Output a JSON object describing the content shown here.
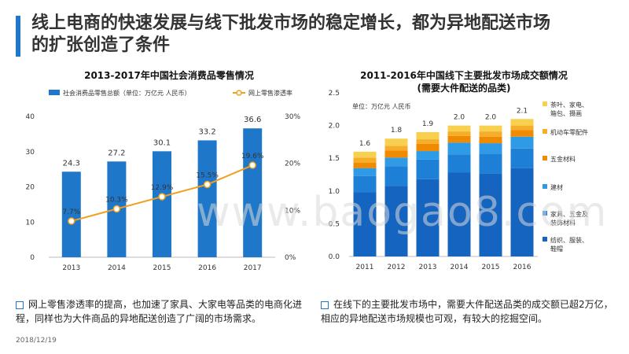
{
  "slide": {
    "title": "线上电商的快速发展与线下批发市场的稳定增长，都为异地配送市场的扩张创造了条件",
    "date": "2018/12/19",
    "watermark": "www.baogao8.com",
    "note_left": "网上零售渗透率的提高，也加速了家具、大家电等品类的电商化进程，同样也为大件商品的异地配送创造了广阔的市场需求。",
    "note_right": "在线下的主要批发市场中，需要大件配送品类的成交额已超2万亿，相应的异地配送市场规模也可观，有较大的挖掘空间。"
  },
  "chart_data": [
    {
      "type": "bar",
      "title": "2013-2017年中国社会消费品零售情况",
      "categories": [
        "2013",
        "2014",
        "2015",
        "2016",
        "2017"
      ],
      "series": [
        {
          "name": "社会消费品零售总额（单位：万亿元 人民币）",
          "type": "bar",
          "axis": "left",
          "values": [
            24.3,
            27.2,
            30.1,
            33.2,
            36.6
          ],
          "color": "#1f77c9"
        },
        {
          "name": "网上零售渗透率",
          "type": "line",
          "axis": "right",
          "values": [
            7.7,
            10.3,
            12.9,
            15.5,
            19.6
          ],
          "labels": [
            "7.7%",
            "10.3%",
            "12.9%",
            "15.5%",
            "19.6%"
          ],
          "color": "#f0a020"
        }
      ],
      "left_axis": {
        "ticks": [
          "0",
          "10",
          "20",
          "30",
          "40"
        ],
        "ylim": [
          0,
          40
        ]
      },
      "right_axis": {
        "ticks": [
          "0%",
          "10%",
          "20%",
          "30%"
        ],
        "ylim": [
          0,
          30
        ]
      },
      "legend_position": "top"
    },
    {
      "type": "bar",
      "stacked": true,
      "title": "2011-2016年中国线下主要批发市场成交额情况",
      "subtitle": "(需要大件配送的品类)",
      "unit_note": "单位：万亿元 人民币",
      "categories": [
        "2011",
        "2012",
        "2013",
        "2014",
        "2015",
        "2016"
      ],
      "totals": [
        "1.6",
        "1.8",
        "1.9",
        "2.0",
        "2.0",
        "2.1"
      ],
      "series": [
        {
          "name": "纺织、服装、鞋帽",
          "values": [
            0.98,
            1.08,
            1.18,
            1.28,
            1.27,
            1.35
          ],
          "color": "#1565c0"
        },
        {
          "name": "家具、五金及装饰材料",
          "values": [
            0.25,
            0.3,
            0.3,
            0.28,
            0.3,
            0.3
          ],
          "color": "#1e7fd6"
        },
        {
          "name": "建材",
          "values": [
            0.12,
            0.13,
            0.13,
            0.18,
            0.16,
            0.18
          ],
          "color": "#2f9be6"
        },
        {
          "name": "五金材料",
          "values": [
            0.08,
            0.11,
            0.11,
            0.1,
            0.1,
            0.1
          ],
          "color": "#f08a00"
        },
        {
          "name": "机动车零配件",
          "values": [
            0.08,
            0.07,
            0.07,
            0.07,
            0.08,
            0.07
          ],
          "color": "#f5ad2a"
        },
        {
          "name": "茶叶、家电、箱包、摄画",
          "values": [
            0.09,
            0.11,
            0.11,
            0.09,
            0.09,
            0.1
          ],
          "color": "#f8cf4e"
        }
      ],
      "y_axis": {
        "ticks": [
          "0.0",
          "0.5",
          "1.0",
          "1.5",
          "2.0",
          "2.5"
        ],
        "ylim": [
          0,
          2.5
        ]
      },
      "legend_position": "right"
    }
  ]
}
